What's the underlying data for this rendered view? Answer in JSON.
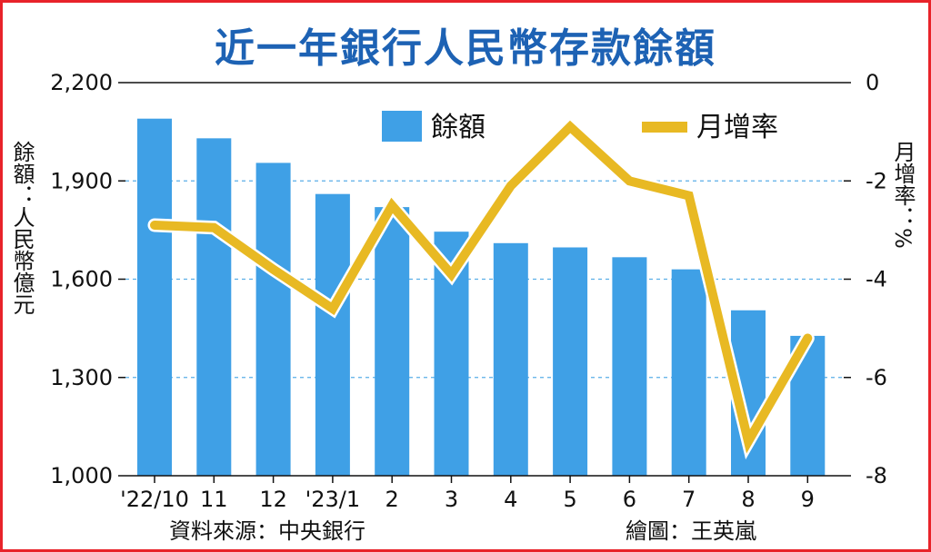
{
  "chart_data": {
    "type": "bar",
    "title": "近一年銀行人民幣存款餘額",
    "categories": [
      "'22/10",
      "11",
      "12",
      "'23/1",
      "2",
      "3",
      "4",
      "5",
      "6",
      "7",
      "8",
      "9"
    ],
    "series": [
      {
        "name": "餘額",
        "type": "bar",
        "axis": "left",
        "color": "#3fa0e6",
        "values": [
          2090,
          2030,
          1955,
          1860,
          1820,
          1745,
          1710,
          1697,
          1667,
          1630,
          1505,
          1427
        ]
      },
      {
        "name": "月增率",
        "type": "line",
        "axis": "right",
        "color": "#e8b923",
        "values": [
          -2.9,
          -2.95,
          -3.8,
          -4.6,
          -2.5,
          -3.9,
          -2.1,
          -0.9,
          -2.0,
          -2.3,
          -7.3,
          -5.2
        ]
      }
    ],
    "yaxis_left": {
      "label": "餘額：人民幣億元",
      "ticks": [
        "1,000",
        "1,300",
        "1,600",
        "1,900",
        "2,200"
      ],
      "tick_values": [
        1000,
        1300,
        1600,
        1900,
        2200
      ],
      "range": [
        1000,
        2200
      ]
    },
    "yaxis_right": {
      "label": "月增率：%",
      "ticks": [
        "0",
        "-2",
        "-4",
        "-6",
        "-8"
      ],
      "tick_values": [
        0,
        -2,
        -4,
        -6,
        -8
      ],
      "range": [
        -8,
        0
      ]
    },
    "grid": "dashed-horizontal",
    "legend_position": "top-center",
    "source": "資料來源：中央銀行",
    "credit": "繪圖：王英嵐"
  }
}
